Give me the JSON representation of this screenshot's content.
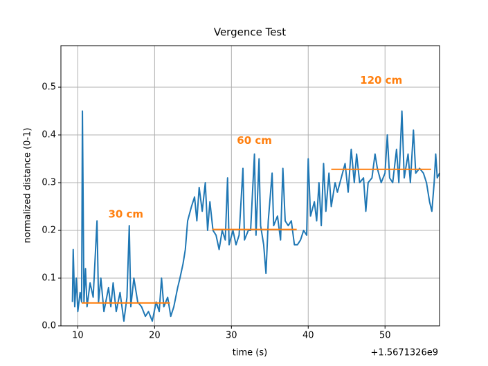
{
  "chart_data": {
    "type": "line",
    "title": "Vergence Test",
    "x_label": "time (s)",
    "y_label": "normalized distance (0-1)",
    "x_offset_label": "+1.5671326e9",
    "color": "#1f77b4",
    "x": [
      9.3,
      9.4,
      9.6,
      9.8,
      10.0,
      10.3,
      10.5,
      10.6,
      10.8,
      11.0,
      11.2,
      11.6,
      12.0,
      12.5,
      12.7,
      13.0,
      13.4,
      14.0,
      14.3,
      14.6,
      15.0,
      15.5,
      16.0,
      16.4,
      16.7,
      16.9,
      17.3,
      17.8,
      18.3,
      18.8,
      19.2,
      19.7,
      20.2,
      20.6,
      20.9,
      21.2,
      21.7,
      22.1,
      22.5,
      23.0,
      23.3,
      23.7,
      24.0,
      24.3,
      24.8,
      25.2,
      25.5,
      25.8,
      26.2,
      26.6,
      26.9,
      27.2,
      27.6,
      28.0,
      28.4,
      28.8,
      29.2,
      29.5,
      29.7,
      30.2,
      30.6,
      31.0,
      31.5,
      31.7,
      32.2,
      32.5,
      33.0,
      33.2,
      33.6,
      33.8,
      34.2,
      34.5,
      34.8,
      35.3,
      35.5,
      36.0,
      36.4,
      36.7,
      37.0,
      37.4,
      37.8,
      38.2,
      38.6,
      39.0,
      39.4,
      39.8,
      40.0,
      40.3,
      40.8,
      41.1,
      41.4,
      41.7,
      42.0,
      42.3,
      42.7,
      43.0,
      43.5,
      43.8,
      44.3,
      44.8,
      45.2,
      45.6,
      46.0,
      46.3,
      46.7,
      47.2,
      47.5,
      47.8,
      48.3,
      48.7,
      49.0,
      49.5,
      50.0,
      50.3,
      50.6,
      51.0,
      51.5,
      51.8,
      52.2,
      52.5,
      53.0,
      53.3,
      53.7,
      54.0,
      54.5,
      55.0,
      55.4,
      55.8,
      56.1,
      56.4,
      56.6,
      56.8,
      57.1
    ],
    "values": [
      0.05,
      0.16,
      0.04,
      0.1,
      0.03,
      0.07,
      0.05,
      0.45,
      0.05,
      0.12,
      0.04,
      0.09,
      0.06,
      0.22,
      0.05,
      0.1,
      0.03,
      0.08,
      0.04,
      0.09,
      0.03,
      0.07,
      0.01,
      0.06,
      0.21,
      0.04,
      0.1,
      0.05,
      0.04,
      0.02,
      0.03,
      0.01,
      0.05,
      0.03,
      0.1,
      0.04,
      0.06,
      0.02,
      0.04,
      0.08,
      0.1,
      0.13,
      0.16,
      0.22,
      0.25,
      0.27,
      0.22,
      0.29,
      0.24,
      0.3,
      0.2,
      0.26,
      0.2,
      0.19,
      0.16,
      0.2,
      0.18,
      0.31,
      0.17,
      0.2,
      0.17,
      0.19,
      0.33,
      0.18,
      0.2,
      0.2,
      0.36,
      0.19,
      0.35,
      0.21,
      0.17,
      0.11,
      0.22,
      0.32,
      0.21,
      0.23,
      0.18,
      0.33,
      0.22,
      0.21,
      0.22,
      0.17,
      0.17,
      0.18,
      0.2,
      0.19,
      0.35,
      0.23,
      0.26,
      0.22,
      0.3,
      0.21,
      0.34,
      0.24,
      0.32,
      0.25,
      0.3,
      0.28,
      0.31,
      0.34,
      0.28,
      0.37,
      0.3,
      0.36,
      0.3,
      0.31,
      0.24,
      0.3,
      0.31,
      0.36,
      0.33,
      0.3,
      0.32,
      0.4,
      0.31,
      0.3,
      0.37,
      0.3,
      0.45,
      0.31,
      0.36,
      0.3,
      0.41,
      0.32,
      0.33,
      0.32,
      0.3,
      0.26,
      0.24,
      0.3,
      0.36,
      0.31,
      0.32
    ],
    "target_color": "#ff7f0e",
    "targets": [
      {
        "label": "30 cm",
        "x": [
          10.5,
          22
        ],
        "value": 0.048
      },
      {
        "label": "60 cm",
        "x": [
          27.5,
          38.5
        ],
        "value": 0.202
      },
      {
        "label": "120 cm",
        "x": [
          43,
          56
        ],
        "value": 0.328
      }
    ],
    "xlim": [
      7.8,
      57.1
    ],
    "ylim": [
      0,
      0.587
    ],
    "xticks": [
      10,
      20,
      30,
      40,
      50
    ],
    "yticks": [
      {
        "value": 0,
        "label": "0.0"
      },
      0.1,
      0.2,
      0.3,
      0.4,
      0.5
    ],
    "grid": true
  }
}
